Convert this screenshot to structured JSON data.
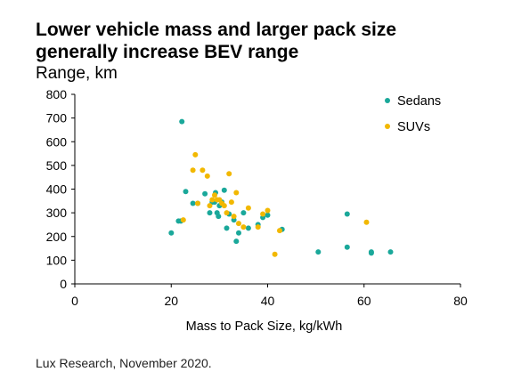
{
  "header": {
    "title_line1": "Lower vehicle mass and larger pack size",
    "title_line2": "generally increase BEV range",
    "subtitle": "Range, km"
  },
  "footer": {
    "source": "Lux Research, November 2020."
  },
  "chart_data": {
    "type": "scatter",
    "title": "Lower vehicle mass and larger pack size generally increase BEV range",
    "xlabel": "Mass to Pack Size, kg/kWh",
    "ylabel": "Range, km",
    "xlim": [
      0,
      80
    ],
    "ylim": [
      0,
      800
    ],
    "xticks": [
      0,
      20,
      40,
      60,
      80
    ],
    "yticks": [
      0,
      100,
      200,
      300,
      400,
      500,
      600,
      700,
      800
    ],
    "grid": false,
    "legend_position": "top-right",
    "series": [
      {
        "name": "Sedans",
        "color": "#1aa89a",
        "points": [
          [
            20,
            215
          ],
          [
            21.5,
            265
          ],
          [
            22,
            265
          ],
          [
            22.2,
            685
          ],
          [
            23,
            390
          ],
          [
            24.5,
            340
          ],
          [
            25.5,
            340
          ],
          [
            27,
            380
          ],
          [
            28,
            300
          ],
          [
            28.5,
            345
          ],
          [
            29,
            345
          ],
          [
            29.2,
            385
          ],
          [
            29.5,
            300
          ],
          [
            29.8,
            285
          ],
          [
            30,
            330
          ],
          [
            30.5,
            345
          ],
          [
            31,
            395
          ],
          [
            31.5,
            235
          ],
          [
            32,
            295
          ],
          [
            33,
            270
          ],
          [
            33.5,
            180
          ],
          [
            34,
            215
          ],
          [
            35,
            300
          ],
          [
            36,
            235
          ],
          [
            38,
            250
          ],
          [
            39,
            280
          ],
          [
            40,
            290
          ],
          [
            43,
            230
          ],
          [
            50.5,
            135
          ],
          [
            56.5,
            295
          ],
          [
            56.5,
            155
          ],
          [
            61.5,
            135
          ],
          [
            61.5,
            130
          ],
          [
            65.5,
            135
          ]
        ]
      },
      {
        "name": "SUVs",
        "color": "#f2b800",
        "points": [
          [
            22.5,
            270
          ],
          [
            24.5,
            480
          ],
          [
            25,
            545
          ],
          [
            25.5,
            340
          ],
          [
            26.5,
            480
          ],
          [
            27.5,
            455
          ],
          [
            28,
            330
          ],
          [
            28.5,
            355
          ],
          [
            29,
            375
          ],
          [
            29.5,
            355
          ],
          [
            30,
            355
          ],
          [
            30.5,
            340
          ],
          [
            31,
            330
          ],
          [
            31.5,
            300
          ],
          [
            32,
            465
          ],
          [
            32.5,
            345
          ],
          [
            33,
            285
          ],
          [
            33.5,
            385
          ],
          [
            34,
            255
          ],
          [
            35,
            240
          ],
          [
            36,
            320
          ],
          [
            38,
            240
          ],
          [
            39,
            295
          ],
          [
            40,
            310
          ],
          [
            41.5,
            125
          ],
          [
            42.5,
            225
          ],
          [
            60.5,
            260
          ]
        ]
      }
    ]
  }
}
